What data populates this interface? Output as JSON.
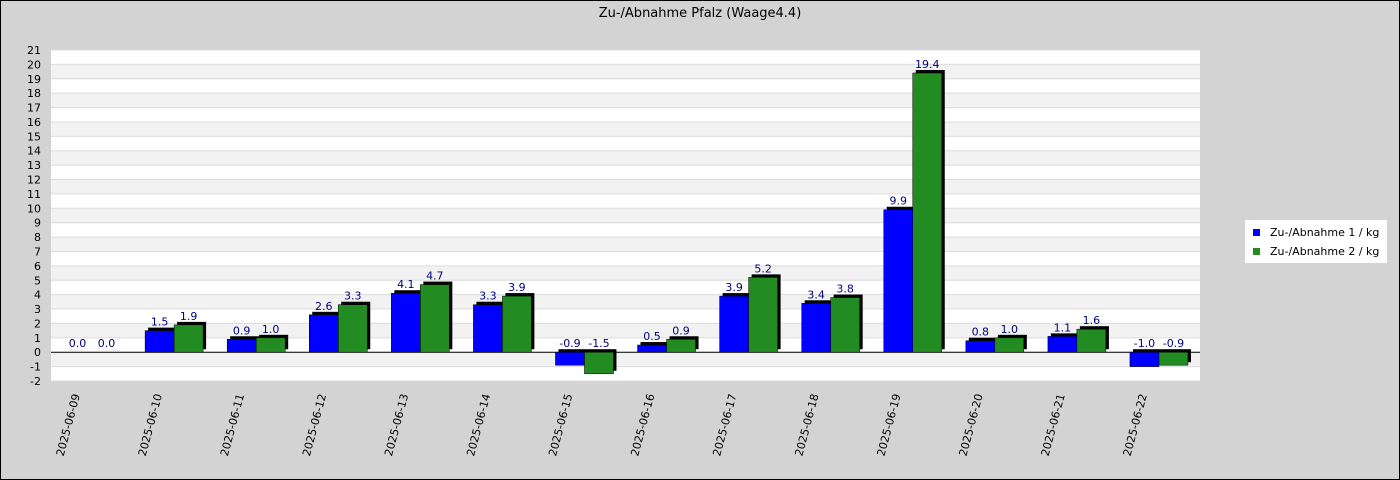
{
  "chart_data": {
    "type": "bar",
    "title": "Zu-/Abnahme Pfalz (Waage4.4)",
    "xlabel": "",
    "ylabel": "",
    "ylim": [
      -2,
      21
    ],
    "yticks": [
      -2,
      -1,
      0,
      1,
      2,
      3,
      4,
      5,
      6,
      7,
      8,
      9,
      10,
      11,
      12,
      13,
      14,
      15,
      16,
      17,
      18,
      19,
      20,
      21
    ],
    "grid": true,
    "legend_position": "right",
    "categories": [
      "2025-06-09",
      "2025-06-10",
      "2025-06-11",
      "2025-06-12",
      "2025-06-13",
      "2025-06-14",
      "2025-06-15",
      "2025-06-16",
      "2025-06-17",
      "2025-06-18",
      "2025-06-19",
      "2025-06-20",
      "2025-06-21",
      "2025-06-22"
    ],
    "series": [
      {
        "name": "Zu-/Abnahme 1 / kg",
        "color": "#0000ff",
        "values": [
          0.0,
          1.5,
          0.9,
          2.6,
          4.1,
          3.3,
          -0.9,
          0.5,
          3.9,
          3.4,
          9.9,
          0.8,
          1.1,
          -1.0
        ],
        "labels": [
          "0.0",
          "1.5",
          "0.9",
          "2.6",
          "4.1",
          "3.3",
          "-0.9",
          "0.5",
          "3.9",
          "3.4",
          "9.9",
          "0.8",
          "1.1",
          "-1.0"
        ]
      },
      {
        "name": "Zu-/Abnahme 2 / kg",
        "color": "#228b22",
        "values": [
          0.0,
          1.9,
          1.0,
          3.3,
          4.7,
          3.9,
          -1.5,
          0.9,
          5.2,
          3.8,
          19.4,
          1.0,
          1.6,
          -0.9
        ],
        "labels": [
          "0.0",
          "1.9",
          "1.0",
          "3.3",
          "4.7",
          "3.9",
          "-1.5",
          "0.9",
          "5.2",
          "3.8",
          "19.4",
          "1.0",
          "1.6",
          "-0.9"
        ]
      }
    ]
  }
}
